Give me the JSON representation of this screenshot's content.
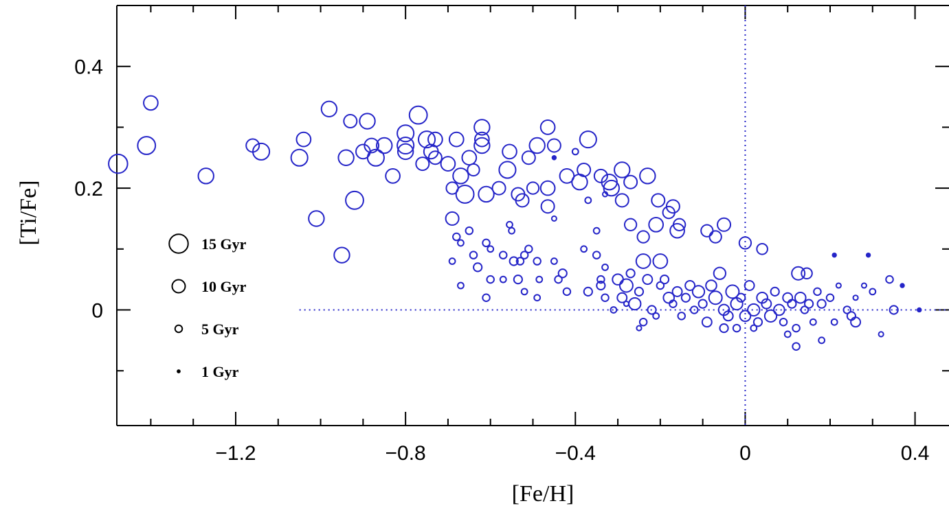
{
  "chart_data": {
    "type": "scatter",
    "x_label": "[Fe/H]",
    "y_label": "[Ti/Fe]",
    "xlim": [
      -1.48,
      0.48
    ],
    "ylim": [
      -0.19,
      0.5
    ],
    "xticks": [
      {
        "value": -1.2,
        "label": "−1.2"
      },
      {
        "value": -0.8,
        "label": "−0.8"
      },
      {
        "value": -0.4,
        "label": "−0.4"
      },
      0,
      0.4
    ],
    "yticks": [
      0,
      0.2,
      0.4
    ],
    "xminorticks": [
      -1.4,
      -1.3,
      -1.1,
      -1.0,
      -0.9,
      -0.7,
      -0.6,
      -0.5,
      -0.3,
      -0.2,
      -0.1,
      0.1,
      0.2,
      0.3
    ],
    "yminorticks": [
      -0.1,
      0.1,
      0.3
    ],
    "reference_lines": [
      {
        "axis": "x",
        "value": 0
      },
      {
        "axis": "y",
        "value": 0,
        "from": -1.05
      }
    ],
    "size_legend": [
      {
        "value": 15,
        "label": "15 Gyr"
      },
      {
        "value": 10,
        "label": "10 Gyr"
      },
      {
        "value": 5,
        "label": "5 Gyr"
      },
      {
        "value": 1,
        "label": "1 Gyr"
      }
    ],
    "series": [
      {
        "color": "#2424c8",
        "x": [
          -1.477,
          -1.41,
          -1.4,
          -1.27,
          -1.16,
          -1.14,
          -1.05,
          -1.04,
          -1.01,
          -0.98,
          -0.95,
          -0.94,
          -0.93,
          -0.92,
          -0.9,
          -0.89,
          -0.88,
          -0.87,
          -0.85,
          -0.83,
          -0.8,
          -0.8,
          -0.8,
          -0.77,
          -0.76,
          -0.75,
          -0.74,
          -0.73,
          -0.73,
          -0.7,
          -0.68,
          -0.69,
          -0.69,
          -0.67,
          -0.66,
          -0.65,
          -0.64,
          -0.62,
          -0.62,
          -0.62,
          -0.61,
          -0.58,
          -0.56,
          -0.555,
          -0.535,
          -0.525,
          -0.51,
          -0.5,
          -0.49,
          -0.465,
          -0.465,
          -0.465,
          -0.45,
          -0.42,
          -0.39,
          -0.37,
          -0.38,
          -0.34,
          -0.32,
          -0.315,
          -0.29,
          -0.29,
          -0.27,
          -0.27,
          -0.23,
          -0.24,
          -0.205,
          -0.21,
          -0.18,
          -0.17,
          -0.16,
          -0.155,
          -0.2,
          -0.24,
          -0.09,
          -0.05,
          -0.07,
          0,
          0.04,
          0.125,
          0.145,
          -0.68,
          -0.65,
          -0.67,
          -0.69,
          -0.64,
          -0.63,
          -0.67,
          -0.61,
          -0.6,
          -0.57,
          -0.6,
          -0.61,
          -0.57,
          -0.555,
          -0.55,
          -0.545,
          -0.535,
          -0.53,
          -0.52,
          -0.51,
          -0.49,
          -0.485,
          -0.52,
          -0.49,
          -0.45,
          -0.44,
          -0.43,
          -0.42,
          -0.38,
          -0.37,
          -0.35,
          -0.35,
          -0.34,
          -0.33,
          -0.37,
          -0.33,
          -0.45,
          -0.45,
          -0.4,
          -0.3,
          -0.28,
          -0.27,
          -0.29,
          -0.26,
          -0.25,
          -0.24,
          -0.23,
          -0.22,
          -0.21,
          -0.2,
          -0.19,
          -0.18,
          -0.17,
          -0.16,
          -0.15,
          -0.14,
          -0.13,
          -0.12,
          -0.11,
          -0.1,
          -0.09,
          -0.08,
          -0.07,
          -0.06,
          -0.05,
          -0.04,
          -0.03,
          -0.02,
          -0.01,
          0,
          0.01,
          0.02,
          0.03,
          0.04,
          0.05,
          0.06,
          0.07,
          0.08,
          0.09,
          0.1,
          0.11,
          0.12,
          0.13,
          0.14,
          0.15,
          0.16,
          0.17,
          0.18,
          0.2,
          0.21,
          0.22,
          0.24,
          0.25,
          0.26,
          0.28,
          0.3,
          0.32,
          0.34,
          0.35,
          0.37,
          0.41,
          0.29,
          0.21,
          -0.05,
          -0.02,
          0.02,
          0.1,
          0.18,
          0.12,
          0.26,
          -0.31,
          -0.33,
          -0.34,
          -0.28,
          -0.25
        ],
        "values": [
          0.24,
          0.27,
          0.34,
          0.22,
          0.27,
          0.26,
          0.25,
          0.28,
          0.15,
          0.33,
          0.09,
          0.25,
          0.31,
          0.18,
          0.26,
          0.31,
          0.27,
          0.25,
          0.27,
          0.22,
          0.29,
          0.27,
          0.26,
          0.32,
          0.24,
          0.28,
          0.26,
          0.28,
          0.25,
          0.24,
          0.28,
          0.2,
          0.15,
          0.22,
          0.19,
          0.25,
          0.23,
          0.3,
          0.28,
          0.27,
          0.19,
          0.2,
          0.23,
          0.26,
          0.19,
          0.18,
          0.25,
          0.2,
          0.27,
          0.3,
          0.2,
          0.17,
          0.27,
          0.22,
          0.21,
          0.28,
          0.23,
          0.22,
          0.21,
          0.2,
          0.23,
          0.18,
          0.21,
          0.14,
          0.22,
          0.12,
          0.18,
          0.14,
          0.16,
          0.17,
          0.13,
          0.14,
          0.08,
          0.08,
          0.13,
          0.14,
          0.12,
          0.11,
          0.1,
          0.06,
          0.06,
          0.12,
          0.13,
          0.11,
          0.08,
          0.09,
          0.07,
          0.04,
          0.11,
          0.1,
          0.09,
          0.05,
          0.02,
          0.05,
          0.14,
          0.13,
          0.08,
          0.05,
          0.08,
          0.09,
          0.1,
          0.08,
          0.05,
          0.03,
          0.02,
          0.08,
          0.05,
          0.06,
          0.03,
          0.1,
          0.03,
          0.09,
          0.13,
          0.05,
          0.07,
          0.18,
          0.19,
          0.15,
          0.25,
          0.26,
          0.05,
          0.04,
          0.06,
          0.02,
          0.01,
          0.03,
          -0.02,
          0.05,
          0,
          -0.01,
          0.04,
          0.05,
          0.02,
          0.01,
          0.03,
          -0.01,
          0.02,
          0.04,
          0,
          0.03,
          0.01,
          -0.02,
          0.04,
          0.02,
          0.06,
          0,
          -0.01,
          0.03,
          0.01,
          0.02,
          -0.01,
          0.04,
          0,
          -0.02,
          0.02,
          0.01,
          -0.01,
          0.03,
          0,
          -0.02,
          0.02,
          0.01,
          -0.03,
          0.02,
          0,
          0.01,
          -0.02,
          0.03,
          0.01,
          0.02,
          -0.02,
          0.04,
          0,
          -0.01,
          0.02,
          0.04,
          0.03,
          -0.04,
          0.05,
          0,
          0.04,
          0,
          0.09,
          0.09,
          -0.03,
          -0.03,
          -0.03,
          -0.04,
          -0.05,
          -0.06,
          -0.02,
          0,
          0.02,
          0.04,
          0.01,
          -0.03
        ],
        "sizes": [
          15,
          14,
          11,
          12,
          10,
          13,
          13,
          11,
          12,
          12,
          12,
          12,
          10,
          14,
          11,
          12,
          11,
          13,
          12,
          11,
          13,
          13,
          12,
          14,
          10,
          13,
          11,
          11,
          10,
          11,
          11,
          9,
          10,
          12,
          14,
          11,
          9,
          12,
          11,
          12,
          12,
          10,
          13,
          11,
          10,
          10,
          10,
          9,
          12,
          11,
          11,
          10,
          10,
          11,
          12,
          13,
          10,
          10,
          12,
          12,
          12,
          10,
          10,
          9,
          12,
          9,
          10,
          11,
          9,
          10,
          11,
          9,
          11,
          11,
          9,
          10,
          9,
          9,
          8,
          10,
          8,
          5,
          5,
          4,
          4,
          5,
          6,
          4,
          5,
          4,
          5,
          5,
          5,
          4,
          4,
          4,
          6,
          6,
          5,
          5,
          5,
          5,
          4,
          4,
          4,
          4,
          5,
          6,
          5,
          4,
          6,
          5,
          4,
          5,
          4,
          4,
          3,
          3,
          2,
          4,
          8,
          10,
          6,
          7,
          9,
          6,
          5,
          7,
          6,
          4,
          5,
          6,
          8,
          5,
          7,
          5,
          6,
          7,
          5,
          9,
          6,
          7,
          8,
          10,
          9,
          8,
          7,
          10,
          9,
          6,
          8,
          7,
          9,
          6,
          8,
          7,
          9,
          6,
          8,
          5,
          7,
          6,
          5,
          8,
          5,
          6,
          4,
          5,
          6,
          5,
          4,
          3,
          5,
          6,
          3,
          3,
          4,
          3,
          5,
          6,
          2,
          2,
          2,
          2,
          6,
          5,
          4,
          4,
          4,
          5,
          7,
          4,
          5,
          6,
          3,
          3
        ]
      }
    ]
  }
}
